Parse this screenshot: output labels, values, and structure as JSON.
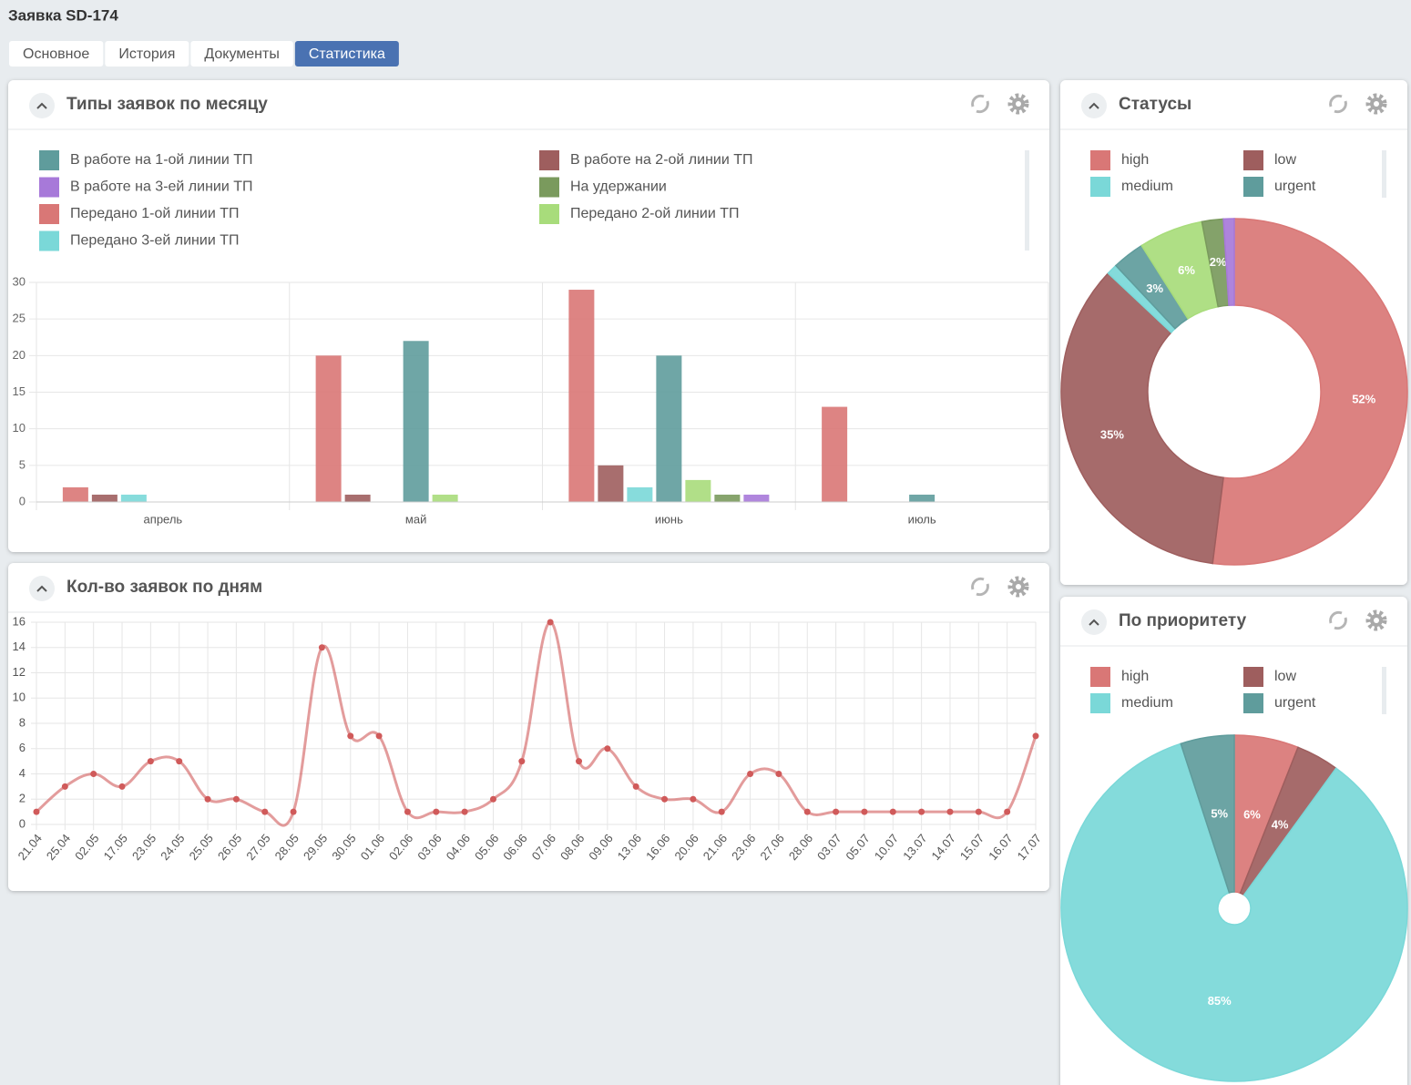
{
  "header": {
    "title": "Заявка SD-174"
  },
  "tabs": [
    {
      "label": "Основное",
      "active": false
    },
    {
      "label": "История",
      "active": false
    },
    {
      "label": "Документы",
      "active": false
    },
    {
      "label": "Статистика",
      "active": true
    }
  ],
  "chart_data": [
    {
      "type": "bar",
      "title": "Типы заявок по месяцу",
      "categories": [
        "апрель",
        "май",
        "июнь",
        "июль"
      ],
      "series": [
        {
          "name": "В работе на 1-ой линии ТП",
          "color": "#5f9c9c",
          "values": [
            0,
            22,
            20,
            1
          ]
        },
        {
          "name": "В работе на 2-ой линии ТП",
          "color": "#9e5e5e",
          "values": [
            1,
            1,
            5,
            0
          ]
        },
        {
          "name": "В работе на 3-ей линии ТП",
          "color": "#a779d9",
          "values": [
            0,
            0,
            1,
            0
          ]
        },
        {
          "name": "На удержании",
          "color": "#7a9a5d",
          "values": [
            0,
            0,
            1,
            0
          ]
        },
        {
          "name": "Передано 1-ой линии ТП",
          "color": "#d97776",
          "values": [
            2,
            20,
            29,
            13
          ]
        },
        {
          "name": "Передано 2-ой линии ТП",
          "color": "#a8dc7b",
          "values": [
            0,
            1,
            3,
            0
          ]
        },
        {
          "name": "Передано 3-ей линии ТП",
          "color": "#7ad8d8",
          "values": [
            1,
            0,
            2,
            0
          ]
        }
      ],
      "ylim": [
        0,
        30
      ],
      "yticks": [
        0,
        5,
        10,
        15,
        20,
        25,
        30
      ],
      "grid": true
    },
    {
      "type": "line",
      "title": "Кол-во заявок по дням",
      "categories": [
        "21.04",
        "25.04",
        "02.05",
        "17.05",
        "23.05",
        "24.05",
        "25.05",
        "26.05",
        "27.05",
        "28.05",
        "29.05",
        "30.05",
        "01.06",
        "02.06",
        "03.06",
        "04.06",
        "05.06",
        "06.06",
        "07.06",
        "08.06",
        "09.06",
        "13.06",
        "16.06",
        "20.06",
        "21.06",
        "23.06",
        "27.06",
        "28.06",
        "03.07",
        "05.07",
        "10.07",
        "13.07",
        "14.07",
        "15.07",
        "16.07",
        "17.07"
      ],
      "values": [
        1,
        3,
        4,
        3,
        5,
        5,
        2,
        2,
        1,
        1,
        14,
        7,
        7,
        1,
        1,
        1,
        2,
        5,
        16,
        5,
        6,
        3,
        2,
        2,
        1,
        4,
        4,
        1,
        1,
        1,
        1,
        1,
        1,
        1,
        1,
        7
      ],
      "color": "#d05a5a",
      "ylim": [
        0,
        16
      ],
      "yticks": [
        0,
        2,
        4,
        6,
        8,
        10,
        12,
        14,
        16
      ],
      "grid": true
    },
    {
      "type": "doughnut",
      "title": "Статусы",
      "categories": [
        "high",
        "low",
        "medium",
        "urgent",
        null,
        null,
        null
      ],
      "values": [
        52,
        35,
        1,
        3,
        6,
        2,
        1
      ],
      "value_labels": [
        "52%",
        "35%",
        null,
        "3%",
        "6%",
        "2%",
        null
      ],
      "colors": [
        "#d97776",
        "#9e5e5e",
        "#7ad8d8",
        "#5f9c9c",
        "#a8dc7b",
        "#7a9a5d",
        "#a779d9"
      ]
    },
    {
      "type": "pie",
      "title": "По приоритету",
      "categories": [
        "high",
        "low",
        "medium",
        "urgent"
      ],
      "values": [
        6,
        4,
        85,
        5
      ],
      "value_labels": [
        "6%",
        "4%",
        "85%",
        "5%"
      ],
      "colors": [
        "#d97776",
        "#9e5e5e",
        "#7ad8d8",
        "#5f9c9c"
      ]
    }
  ]
}
